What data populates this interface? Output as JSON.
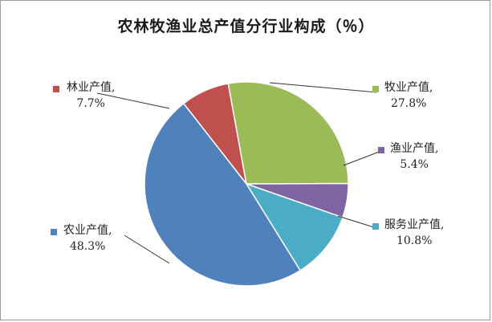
{
  "chart_data": {
    "type": "pie",
    "title": "农林牧渔业总产值分行业构成（％）",
    "slices": [
      {
        "name": "林业产值",
        "value": 7.7,
        "label_line1": "林业产值,",
        "label_line2": "7.7%",
        "color": "#c0504d"
      },
      {
        "name": "牧业产值",
        "value": 27.8,
        "label_line1": "牧业产值,",
        "label_line2": "27.8%",
        "color": "#9bbb59"
      },
      {
        "name": "渔业产值",
        "value": 5.4,
        "label_line1": "渔业产值,",
        "label_line2": "5.4%",
        "color": "#8064a2"
      },
      {
        "name": "服务业产值",
        "value": 10.8,
        "label_line1": "服务业产值,",
        "label_line2": "10.8%",
        "color": "#4bacc6"
      },
      {
        "name": "农业产值",
        "value": 48.3,
        "label_line1": "农业产值,",
        "label_line2": "48.3%",
        "color": "#4f81bd"
      }
    ],
    "start_slice": "林业产值",
    "direction": "clockwise",
    "legend": "none"
  }
}
